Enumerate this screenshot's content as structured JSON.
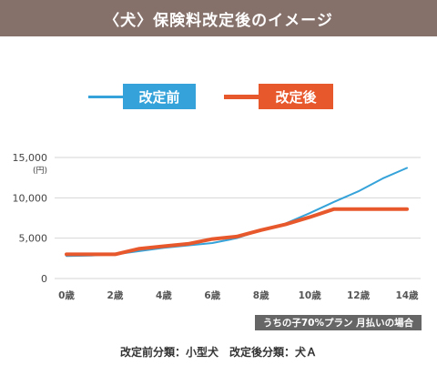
{
  "header": {
    "title": "〈犬〉保険料改定後のイメージ"
  },
  "legend": {
    "before_label": "改定前",
    "after_label": "改定後"
  },
  "note": "うちの子70%プラン 月払いの場合",
  "footer": "改定前分類：小型犬　改定後分類：犬Ａ",
  "colors": {
    "before": "#35a3d9",
    "after": "#e8582d",
    "header_bg": "#85706a"
  },
  "chart_data": {
    "type": "line",
    "unit_label": "(円)",
    "x": [
      0,
      1,
      2,
      3,
      4,
      5,
      6,
      7,
      8,
      9,
      10,
      11,
      12,
      13,
      14
    ],
    "x_tick_labels": [
      "0歳",
      "2歳",
      "4歳",
      "6歳",
      "8歳",
      "10歳",
      "12歳",
      "14歳"
    ],
    "x_ticks": [
      0,
      2,
      4,
      6,
      8,
      10,
      12,
      14
    ],
    "y_tick_labels": [
      "0",
      "5,000",
      "10,000",
      "15,000"
    ],
    "y_ticks": [
      0,
      5000,
      10000,
      15000
    ],
    "ylim": [
      0,
      15000
    ],
    "xlim": [
      0,
      14
    ],
    "grid": true,
    "series": [
      {
        "name": "改定前",
        "color": "#35a3d9",
        "values": [
          2800,
          2850,
          3000,
          3400,
          3800,
          4100,
          4400,
          5000,
          6000,
          6800,
          8100,
          9500,
          10800,
          12400,
          13700
        ]
      },
      {
        "name": "改定後",
        "color": "#e8582d",
        "values": [
          3000,
          3000,
          3000,
          3700,
          4000,
          4300,
          4900,
          5200,
          6000,
          6700,
          7600,
          8600,
          8600,
          8600,
          8600
        ]
      }
    ]
  }
}
